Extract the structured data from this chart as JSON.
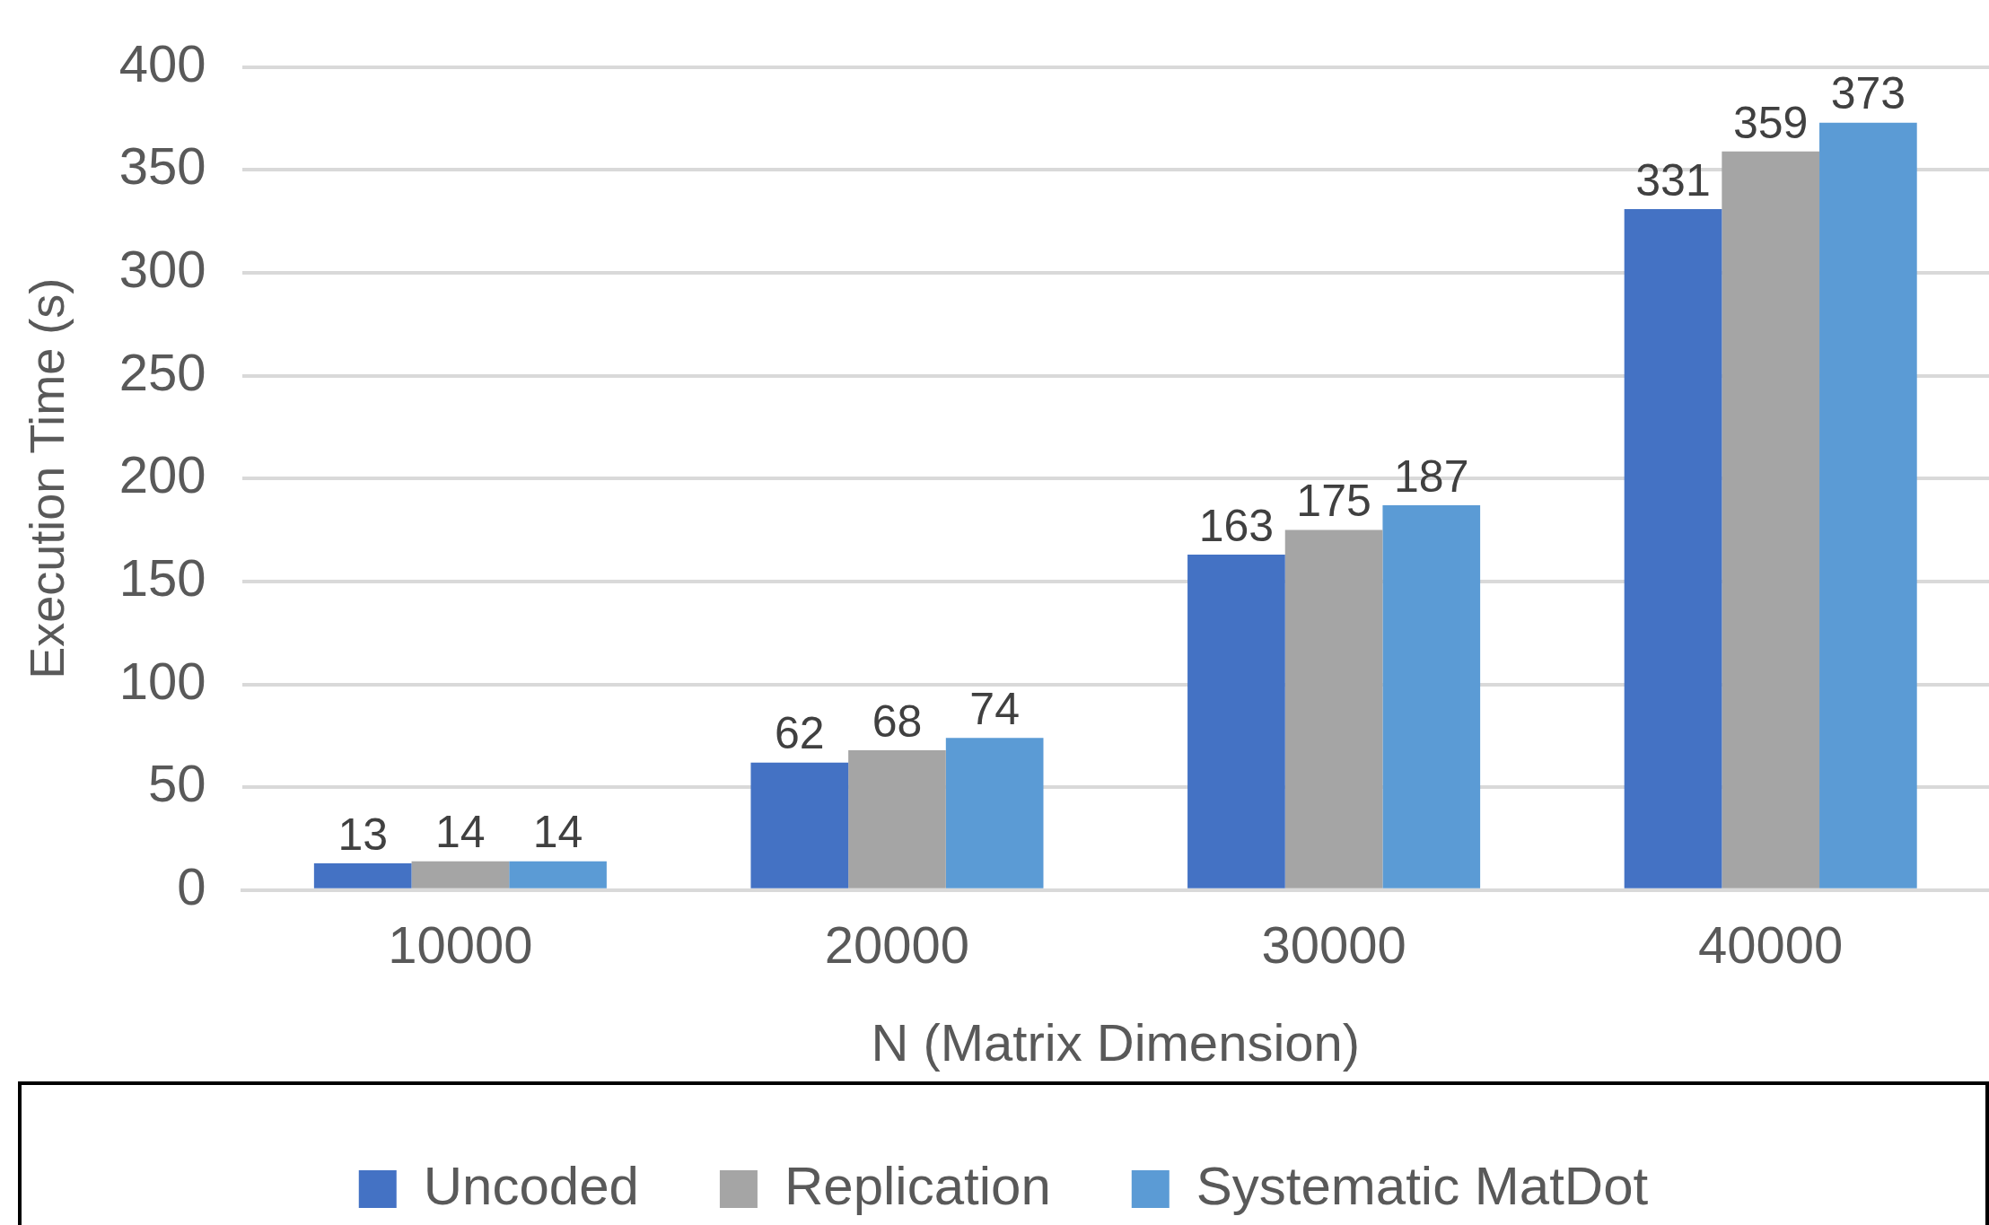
{
  "chart_data": {
    "type": "bar",
    "xlabel": "N (Matrix Dimension)",
    "ylabel": "Execution Time (s)",
    "categories": [
      "10000",
      "20000",
      "30000",
      "40000"
    ],
    "series": [
      {
        "name": "Uncoded",
        "color": "#4472c4",
        "values": [
          13,
          62,
          163,
          331
        ]
      },
      {
        "name": "Replication",
        "color": "#a5a5a5",
        "values": [
          14,
          68,
          175,
          359
        ]
      },
      {
        "name": "Systematic MatDot",
        "color": "#5b9bd5",
        "values": [
          14,
          74,
          187,
          373
        ]
      }
    ],
    "ylim": [
      0,
      400
    ],
    "yticks": [
      0,
      50,
      100,
      150,
      200,
      250,
      300,
      350,
      400
    ],
    "grid": "y",
    "legend": "bottom",
    "data_labels": true
  }
}
